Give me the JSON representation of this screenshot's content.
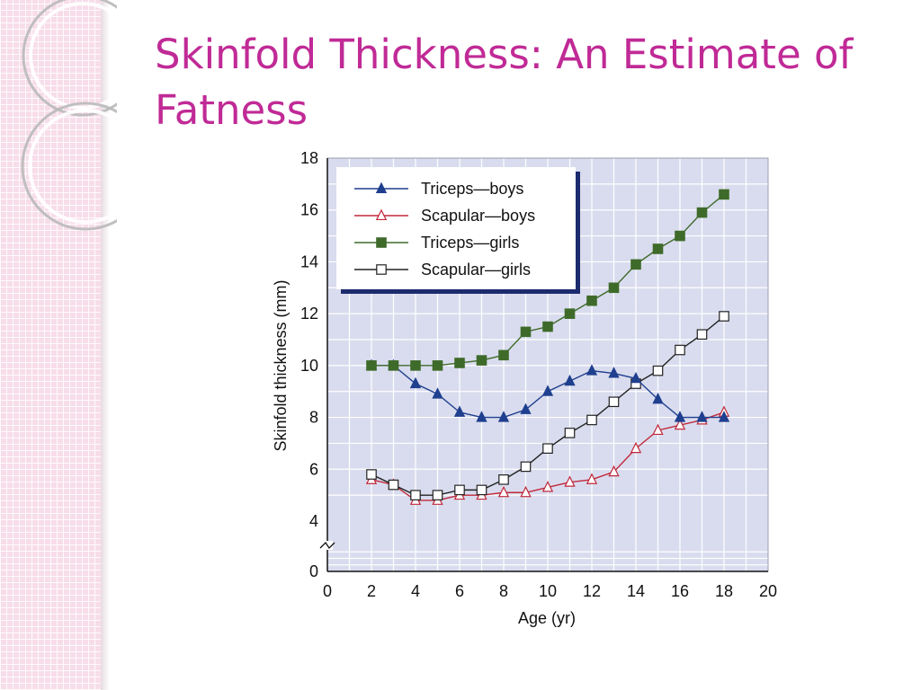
{
  "slide": {
    "title": "Skinfold Thickness: An Estimate of Fatness"
  },
  "colors": {
    "title": "#c02a96",
    "side_pattern": "#f7dde9",
    "plot_background": "#d9dcee",
    "grid": "#ffffff",
    "triceps_boys": "#1f3f8f",
    "scapular_boys": "#c0283a",
    "triceps_girls": "#3f6b2a",
    "scapular_girls": "#222222"
  },
  "chart_data": {
    "type": "line",
    "title": "",
    "xlabel": "Age (yr)",
    "ylabel": "Skinfold thickness (mm)",
    "xlim": [
      0,
      20
    ],
    "ylim": [
      0,
      18
    ],
    "x_ticks": [
      "0",
      "2",
      "4",
      "6",
      "8",
      "10",
      "12",
      "14",
      "16",
      "18",
      "20"
    ],
    "y_ticks": [
      "0",
      "4",
      "6",
      "8",
      "10",
      "12",
      "14",
      "16",
      "18"
    ],
    "axis_break": "y between 0 and 4",
    "grid": true,
    "legend_position": "top-left",
    "x": [
      2,
      3,
      4,
      5,
      6,
      7,
      8,
      9,
      10,
      11,
      12,
      13,
      14,
      15,
      16,
      17,
      18
    ],
    "series": [
      {
        "name": "Triceps—boys",
        "marker": "filled-triangle",
        "color": "#1f3f8f",
        "values": [
          10.0,
          10.0,
          9.3,
          8.9,
          8.2,
          8.0,
          8.0,
          8.3,
          9.0,
          9.4,
          9.8,
          9.7,
          9.5,
          8.7,
          8.0,
          8.0,
          8.0
        ]
      },
      {
        "name": "Scapular—boys",
        "marker": "open-triangle",
        "color": "#c0283a",
        "values": [
          5.6,
          5.4,
          4.8,
          4.8,
          5.0,
          5.0,
          5.1,
          5.1,
          5.3,
          5.5,
          5.6,
          5.9,
          6.8,
          7.5,
          7.7,
          7.9,
          8.2
        ]
      },
      {
        "name": "Triceps—girls",
        "marker": "filled-square",
        "color": "#3f6b2a",
        "values": [
          10.0,
          10.0,
          10.0,
          10.0,
          10.1,
          10.2,
          10.4,
          11.3,
          11.5,
          12.0,
          12.5,
          13.0,
          13.9,
          14.5,
          15.0,
          15.9,
          16.6
        ]
      },
      {
        "name": "Scapular—girls",
        "marker": "open-square",
        "color": "#222222",
        "values": [
          5.8,
          5.4,
          5.0,
          5.0,
          5.2,
          5.2,
          5.6,
          6.1,
          6.8,
          7.4,
          7.9,
          8.6,
          9.3,
          9.8,
          10.6,
          11.2,
          11.9
        ]
      }
    ]
  }
}
